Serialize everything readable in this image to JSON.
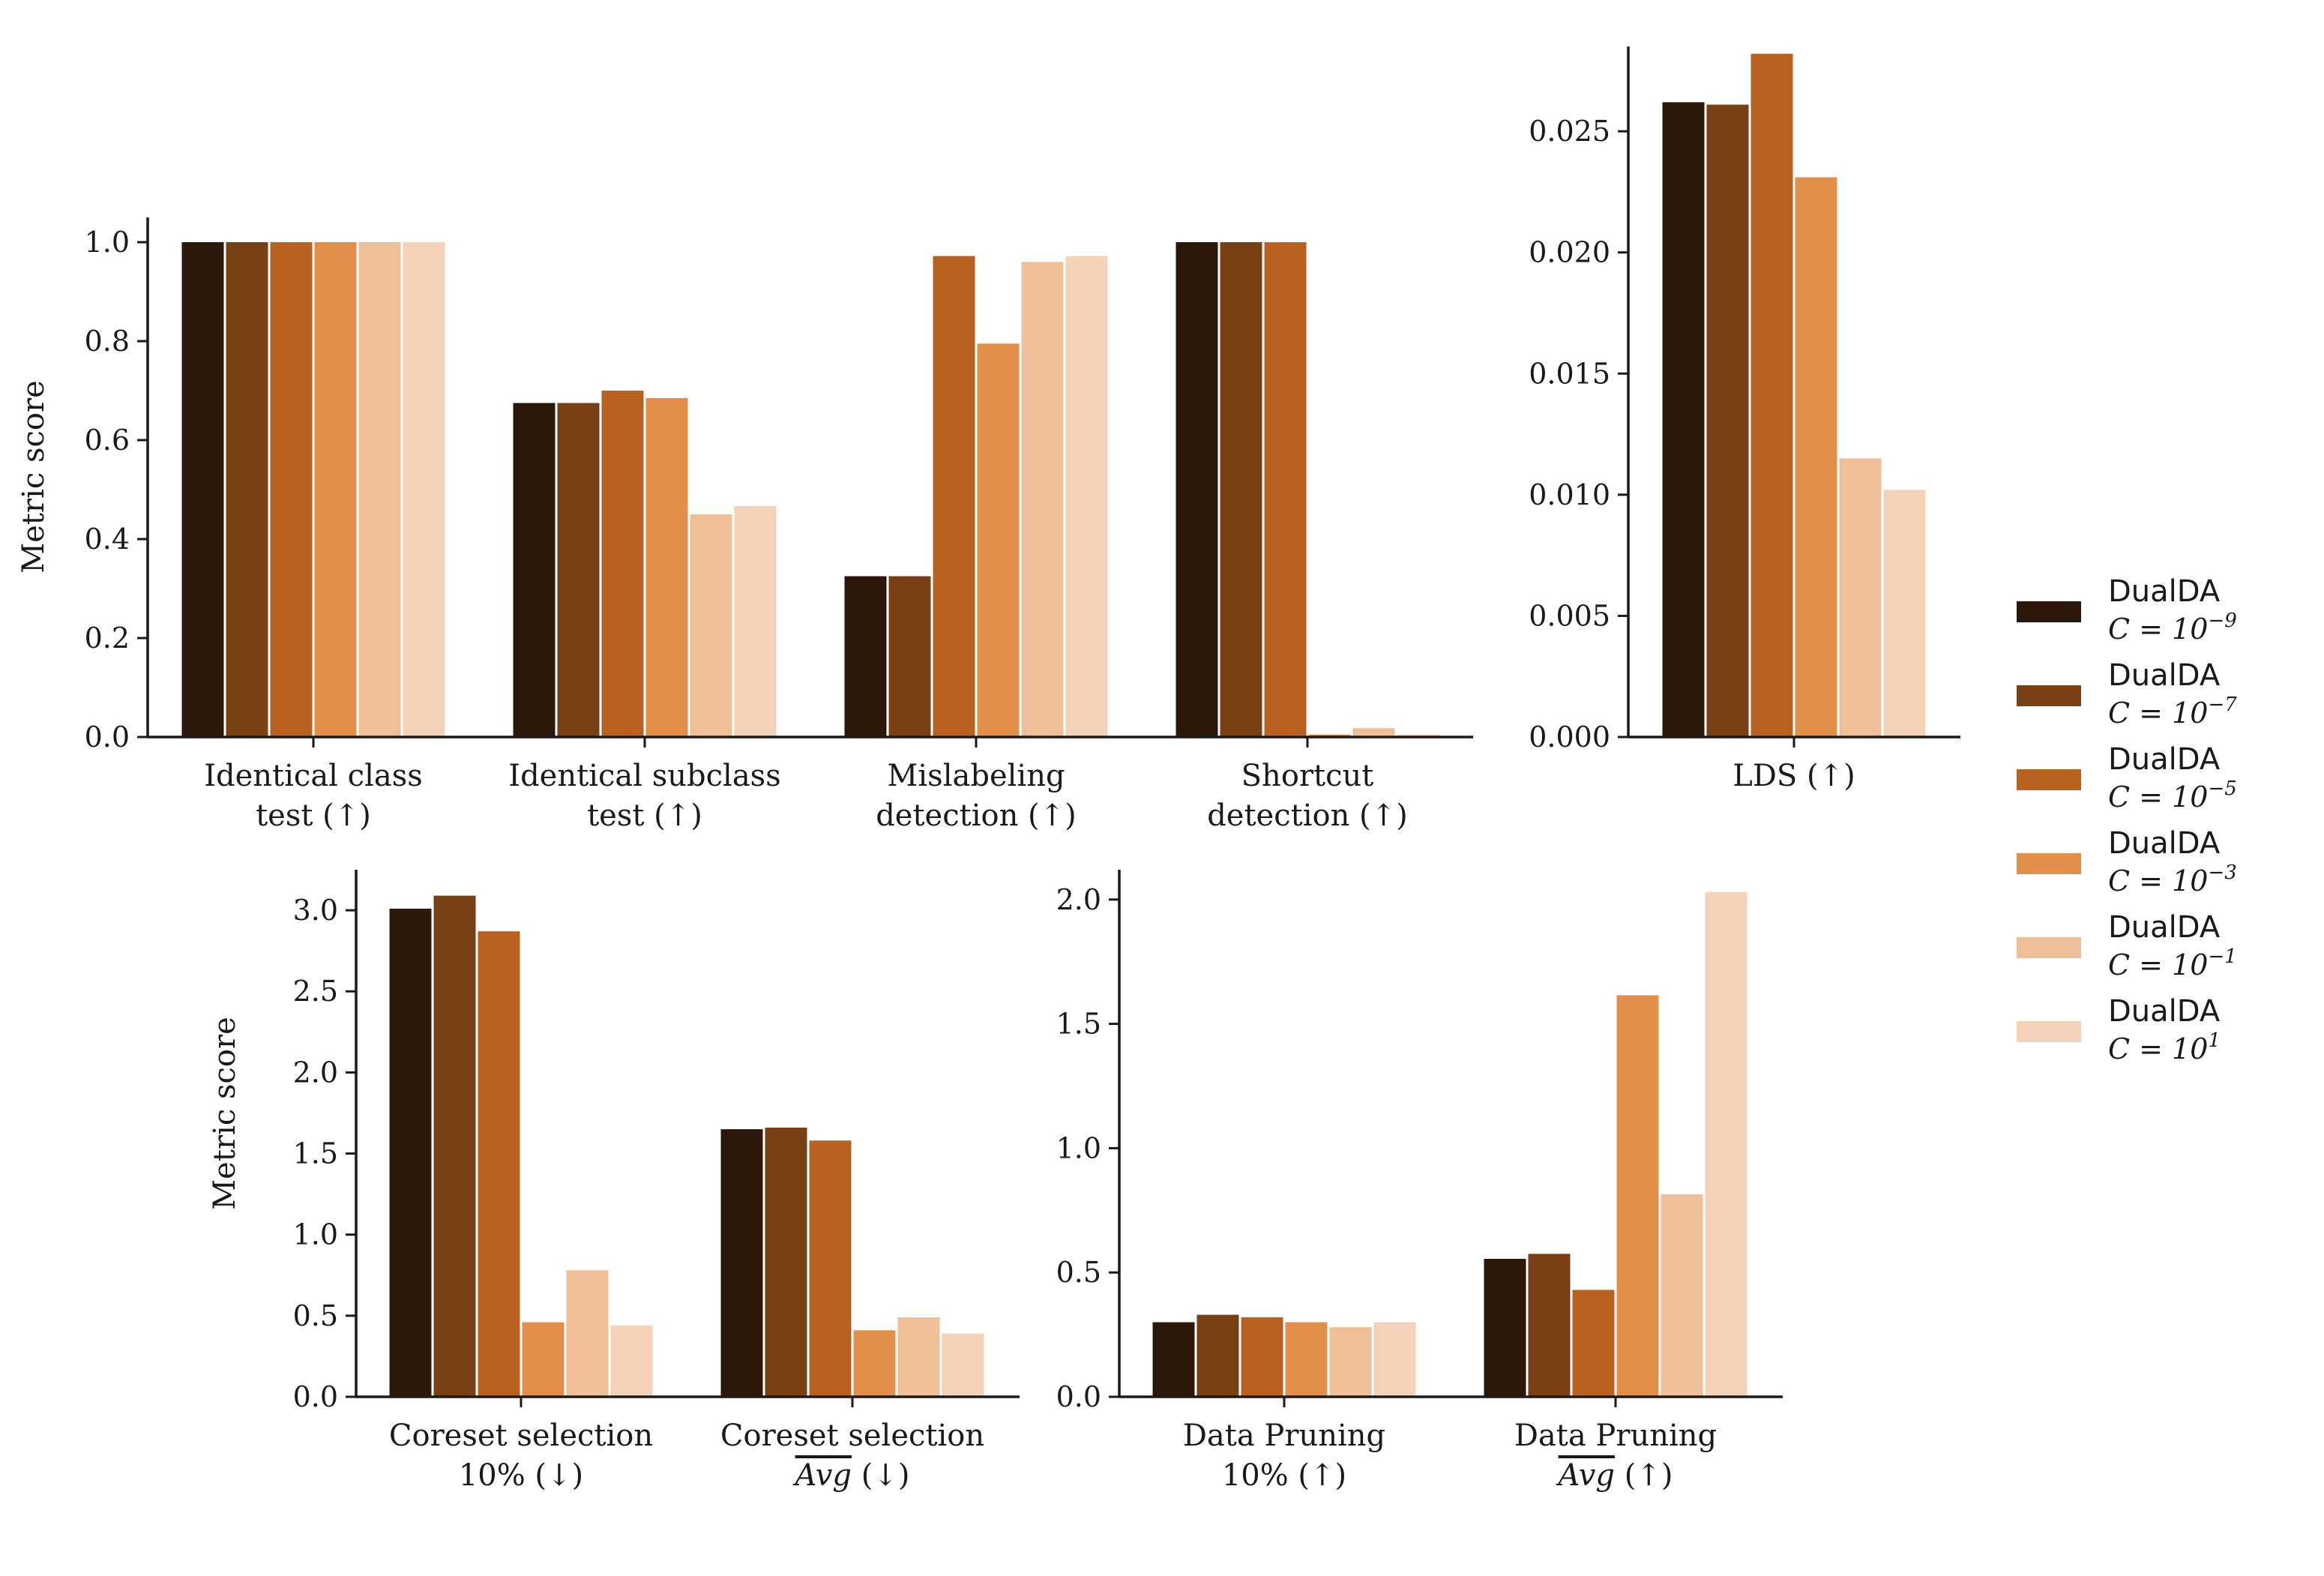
{
  "series": [
    {
      "name": "DualDA",
      "param_base": "C = 10",
      "param_exp": "−9",
      "color": "#2b180a"
    },
    {
      "name": "DualDA",
      "param_base": "C = 10",
      "param_exp": "−7",
      "color": "#7a4015"
    },
    {
      "name": "DualDA",
      "param_base": "C = 10",
      "param_exp": "−5",
      "color": "#b86121"
    },
    {
      "name": "DualDA",
      "param_base": "C = 10",
      "param_exp": "−3",
      "color": "#e38f4c"
    },
    {
      "name": "DualDA",
      "param_base": "C = 10",
      "param_exp": "−1",
      "color": "#efbf99"
    },
    {
      "name": "DualDA",
      "param_base": "C = 10",
      "param_exp": "1",
      "color": "#f4d2b7"
    }
  ],
  "chart_data": [
    {
      "id": "top-left",
      "type": "bar",
      "ylabel": "Metric score",
      "ylim": [
        0,
        1.05
      ],
      "yticks": [
        "0.0",
        "0.2",
        "0.4",
        "0.6",
        "0.8",
        "1.0"
      ],
      "categories": [
        [
          "Identical class",
          "test (↑)"
        ],
        [
          "Identical subclass",
          "test (↑)"
        ],
        [
          "Mislabeling",
          "detection (↑)"
        ],
        [
          "Shortcut",
          "detection (↑)"
        ]
      ],
      "values": [
        [
          1.0,
          1.0,
          1.0,
          1.0,
          1.0,
          1.0
        ],
        [
          0.675,
          0.675,
          0.7,
          0.685,
          0.45,
          0.467
        ],
        [
          0.325,
          0.325,
          0.972,
          0.795,
          0.96,
          0.972
        ],
        [
          1.0,
          1.0,
          1.0,
          0.005,
          0.018,
          0.005
        ]
      ]
    },
    {
      "id": "top-right",
      "type": "bar",
      "ylabel": "",
      "ylim": [
        0,
        0.0285
      ],
      "yticks": [
        "0.000",
        "0.005",
        "0.010",
        "0.015",
        "0.020",
        "0.025"
      ],
      "categories": [
        [
          "LDS (↑)"
        ]
      ],
      "values": [
        [
          0.0262,
          0.0261,
          0.0282,
          0.0231,
          0.0115,
          0.0102
        ]
      ]
    },
    {
      "id": "bottom-left",
      "type": "bar",
      "ylabel": "Metric score",
      "ylim": [
        0,
        3.25
      ],
      "yticks": [
        "0.0",
        "0.5",
        "1.0",
        "1.5",
        "2.0",
        "2.5",
        "3.0"
      ],
      "categories": [
        [
          "Coreset selection",
          "10% (↓)"
        ],
        [
          "Coreset selection",
          "Avg (↓)"
        ]
      ],
      "values": [
        [
          3.01,
          3.09,
          2.87,
          0.46,
          0.78,
          0.44
        ],
        [
          1.65,
          1.66,
          1.58,
          0.41,
          0.49,
          0.39
        ]
      ]
    },
    {
      "id": "bottom-right",
      "type": "bar",
      "ylabel": "",
      "ylim": [
        0,
        2.12
      ],
      "yticks": [
        "0.0",
        "0.5",
        "1.0",
        "1.5",
        "2.0"
      ],
      "categories": [
        [
          "Data Pruning",
          "10% (↑)"
        ],
        [
          "Data Pruning",
          "Avg (↑)"
        ]
      ],
      "values": [
        [
          0.3,
          0.33,
          0.32,
          0.3,
          0.28,
          0.3
        ],
        [
          0.555,
          0.575,
          0.43,
          1.615,
          0.815,
          2.03
        ]
      ]
    }
  ]
}
